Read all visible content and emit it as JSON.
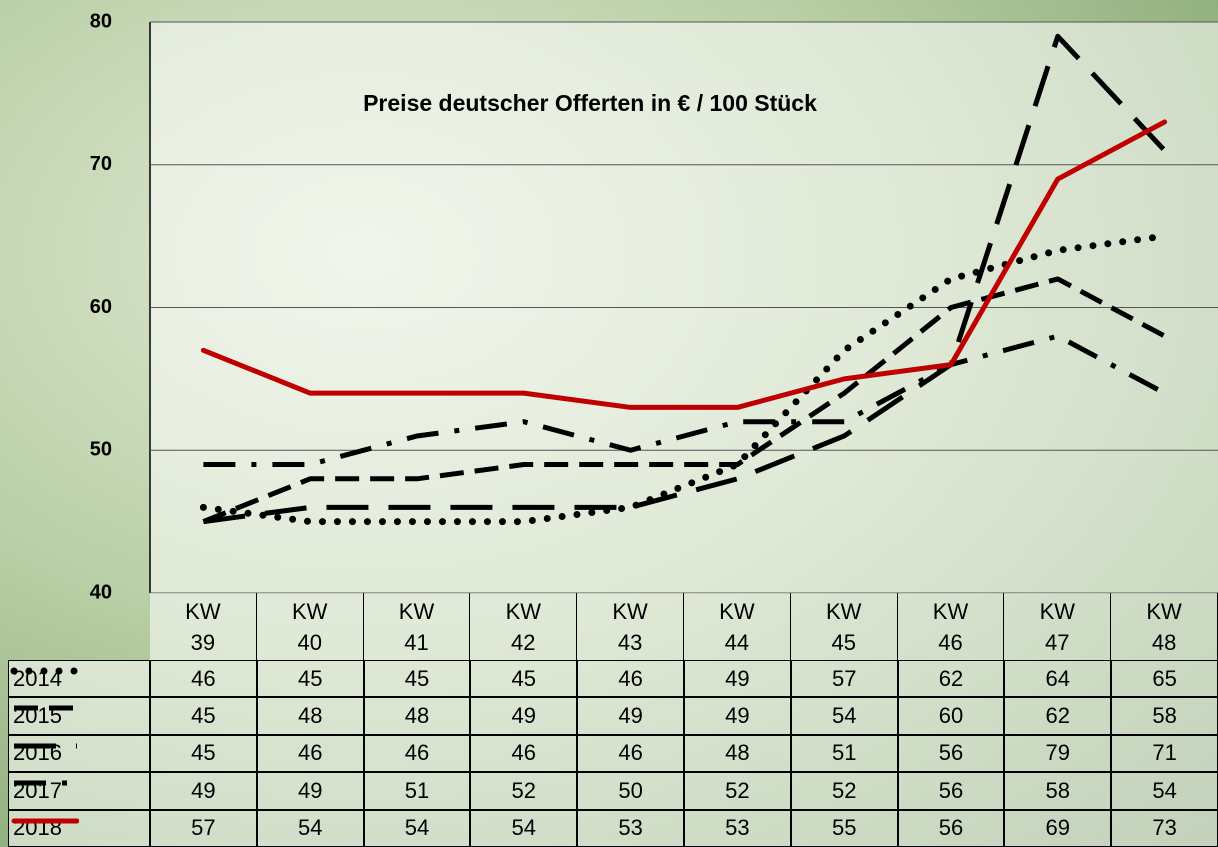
{
  "chart_data": {
    "type": "line",
    "title": "Preise deutscher Offerten in € / 100 Stück",
    "categories": [
      "KW\n39",
      "KW\n40",
      "KW\n41",
      "KW\n42",
      "KW\n43",
      "KW\n44",
      "KW\n45",
      "KW\n46",
      "KW\n47",
      "KW\n48"
    ],
    "series": [
      {
        "name": "2014",
        "color": "#000000",
        "dash": "dotted",
        "values": [
          46,
          45,
          45,
          45,
          46,
          49,
          57,
          62,
          64,
          65
        ]
      },
      {
        "name": "2015",
        "color": "#000000",
        "dash": "dashed",
        "values": [
          45,
          48,
          48,
          49,
          49,
          49,
          54,
          60,
          62,
          58
        ]
      },
      {
        "name": "2016",
        "color": "#000000",
        "dash": "long-dash",
        "values": [
          45,
          46,
          46,
          46,
          46,
          48,
          51,
          56,
          79,
          71
        ]
      },
      {
        "name": "2017",
        "color": "#000000",
        "dash": "dash-dot",
        "values": [
          49,
          49,
          51,
          52,
          50,
          52,
          52,
          56,
          58,
          54
        ]
      },
      {
        "name": "2018",
        "color": "#c00000",
        "dash": "solid",
        "values": [
          57,
          54,
          54,
          54,
          53,
          53,
          55,
          56,
          69,
          73
        ]
      }
    ],
    "ylim": [
      40,
      80
    ],
    "yticks": [
      40,
      50,
      60,
      70,
      80
    ],
    "grid": true
  }
}
